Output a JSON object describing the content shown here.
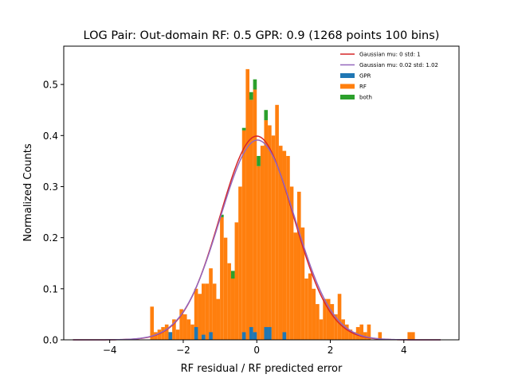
{
  "chart_data": {
    "type": "bar",
    "title": "LOG Pair: Out-domain RF: 0.5 GPR: 0.9 (1268 points 100 bins)",
    "xlabel": "RF residual / RF predicted error",
    "ylabel": "Normalized Counts",
    "xlim": [
      -5.25,
      5.5
    ],
    "ylim": [
      0,
      0.575
    ],
    "xticks": [
      -4,
      -2,
      0,
      2,
      4
    ],
    "xtick_labels": [
      "−4",
      "−2",
      "0",
      "2",
      "4"
    ],
    "yticks": [
      0.0,
      0.1,
      0.2,
      0.3,
      0.4,
      0.5
    ],
    "ytick_labels": [
      "0.0",
      "0.1",
      "0.2",
      "0.3",
      "0.4",
      "0.5"
    ],
    "grid": false,
    "legend_position": "top-right",
    "colors": {
      "gpr": "#1f77b4",
      "rf": "#ff7f0e",
      "both": "#2ca02c",
      "gauss1": "#d62728",
      "gauss2": "#9467bd"
    },
    "bin_width": 0.1,
    "rf_bins": [
      [
        -2.85,
        0.065
      ],
      [
        -2.75,
        0.015
      ],
      [
        -2.65,
        0.02
      ],
      [
        -2.55,
        0.025
      ],
      [
        -2.45,
        0.03
      ],
      [
        -2.35,
        0.015
      ],
      [
        -2.25,
        0.04
      ],
      [
        -2.15,
        0.02
      ],
      [
        -2.05,
        0.06
      ],
      [
        -1.95,
        0.05
      ],
      [
        -1.85,
        0.04
      ],
      [
        -1.75,
        0.03
      ],
      [
        -1.65,
        0.1
      ],
      [
        -1.55,
        0.09
      ],
      [
        -1.45,
        0.11
      ],
      [
        -1.35,
        0.11
      ],
      [
        -1.25,
        0.14
      ],
      [
        -1.15,
        0.11
      ],
      [
        -1.05,
        0.08
      ],
      [
        -0.95,
        0.24
      ],
      [
        -0.85,
        0.2
      ],
      [
        -0.75,
        0.15
      ],
      [
        -0.65,
        0.12
      ],
      [
        -0.55,
        0.23
      ],
      [
        -0.45,
        0.3
      ],
      [
        -0.35,
        0.41
      ],
      [
        -0.25,
        0.53
      ],
      [
        -0.15,
        0.47
      ],
      [
        -0.05,
        0.49
      ],
      [
        0.05,
        0.34
      ],
      [
        0.15,
        0.38
      ],
      [
        0.25,
        0.43
      ],
      [
        0.35,
        0.42
      ],
      [
        0.45,
        0.4
      ],
      [
        0.55,
        0.46
      ],
      [
        0.65,
        0.38
      ],
      [
        0.75,
        0.37
      ],
      [
        0.85,
        0.36
      ],
      [
        0.95,
        0.3
      ],
      [
        1.05,
        0.21
      ],
      [
        1.15,
        0.29
      ],
      [
        1.25,
        0.22
      ],
      [
        1.35,
        0.12
      ],
      [
        1.45,
        0.13
      ],
      [
        1.55,
        0.1
      ],
      [
        1.65,
        0.07
      ],
      [
        1.75,
        0.04
      ],
      [
        1.85,
        0.08
      ],
      [
        1.95,
        0.08
      ],
      [
        2.05,
        0.07
      ],
      [
        2.15,
        0.05
      ],
      [
        2.25,
        0.09
      ],
      [
        2.35,
        0.04
      ],
      [
        2.45,
        0.03
      ],
      [
        2.55,
        0.02
      ],
      [
        2.65,
        0.015
      ],
      [
        2.75,
        0.025
      ],
      [
        2.85,
        0.03
      ],
      [
        2.95,
        0.015
      ],
      [
        3.05,
        0.03
      ],
      [
        3.35,
        0.015
      ],
      [
        4.15,
        0.015
      ],
      [
        4.25,
        0.015
      ]
    ],
    "gpr_bins": [
      [
        -2.35,
        0.015
      ],
      [
        -1.65,
        0.025
      ],
      [
        -1.45,
        0.01
      ],
      [
        -1.25,
        0.015
      ],
      [
        -0.35,
        0.015
      ],
      [
        -0.15,
        0.025
      ],
      [
        -0.05,
        0.015
      ],
      [
        0.25,
        0.025
      ],
      [
        0.35,
        0.025
      ],
      [
        0.75,
        0.015
      ]
    ],
    "both_bins": [
      [
        -0.95,
        0.005
      ],
      [
        -0.65,
        0.015
      ],
      [
        -0.35,
        0.005
      ],
      [
        -0.15,
        0.015
      ],
      [
        -0.05,
        0.02
      ],
      [
        0.05,
        0.02
      ],
      [
        0.25,
        0.02
      ]
    ],
    "series": [
      {
        "name": "Gaussian mu: 0 std: 1",
        "type": "line",
        "mu": 0,
        "std": 1
      },
      {
        "name": "Gaussian mu: 0.02 std: 1.02",
        "type": "line",
        "mu": 0.02,
        "std": 1.02
      },
      {
        "name": "GPR",
        "type": "bar"
      },
      {
        "name": "RF",
        "type": "bar"
      },
      {
        "name": "both",
        "type": "bar"
      }
    ],
    "curve_range": [
      -5,
      5
    ]
  }
}
